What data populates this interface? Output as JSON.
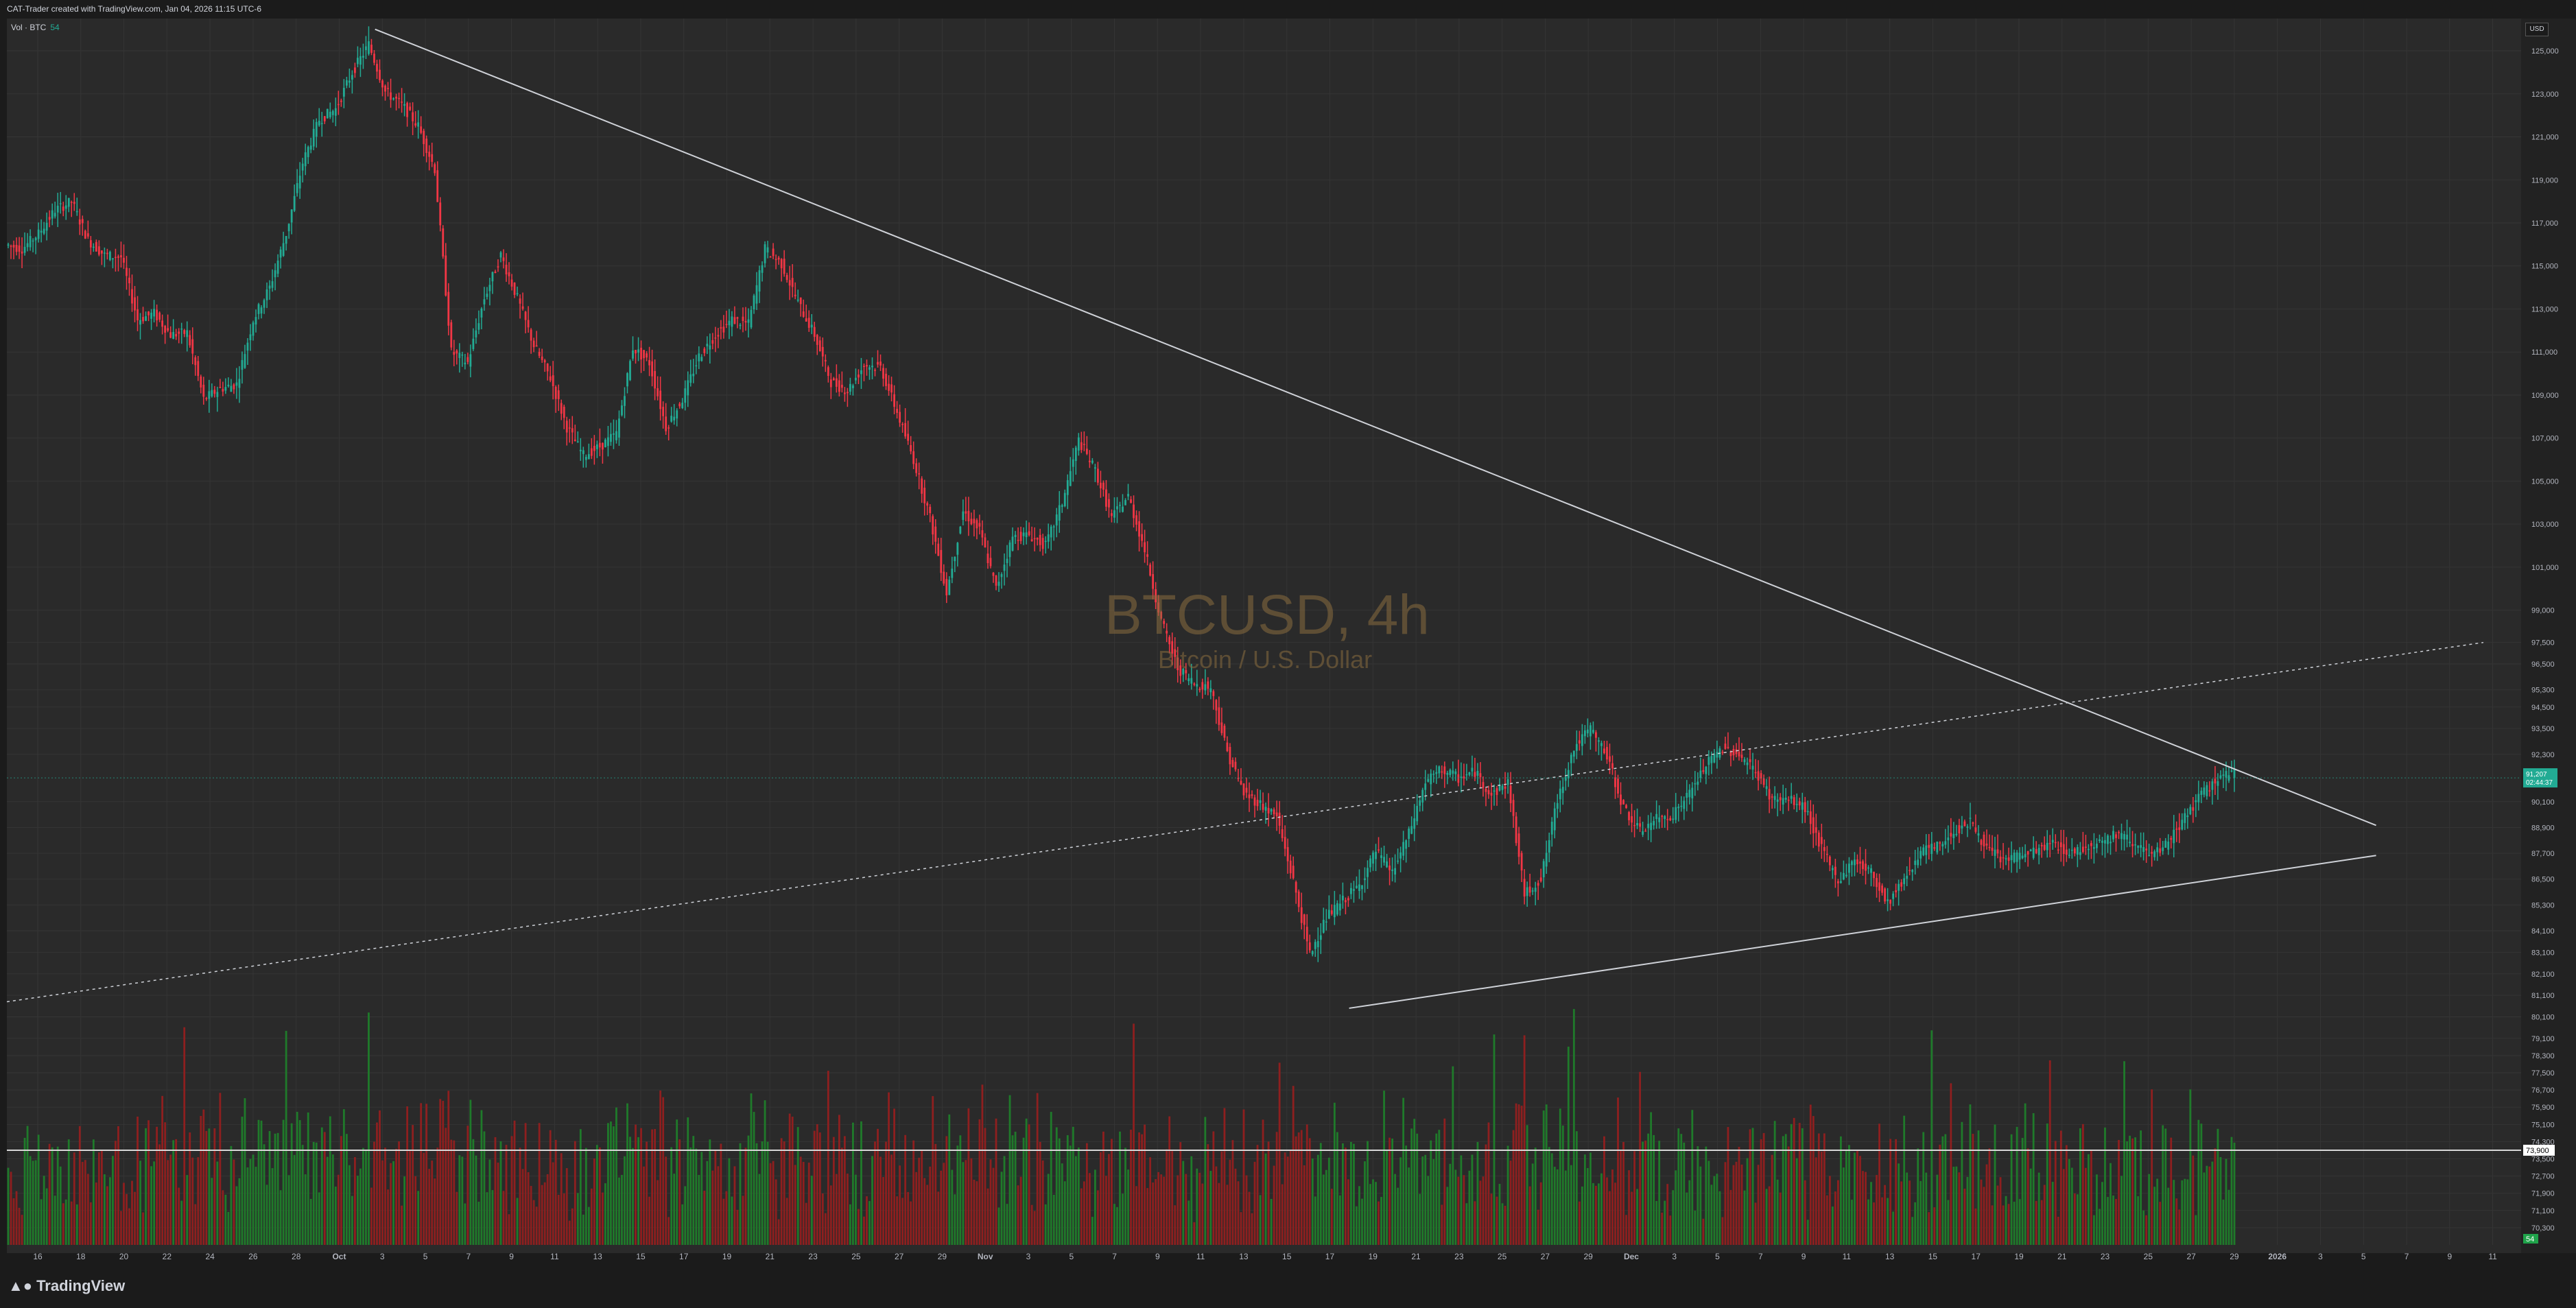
{
  "caption": "CAT-Trader created with TradingView.com, Jan 04, 2026 11:15 UTC-6",
  "indicator_legend": {
    "label": "Vol · BTC",
    "value": "54"
  },
  "watermark": {
    "symbol": "BTCUSD, 4h",
    "description": "Bitcoin / U.S. Dollar"
  },
  "brand": {
    "name": "TradingView",
    "logo": "tradingview-logo-icon"
  },
  "currency": "USD",
  "colors": {
    "up": "#22ab94",
    "down": "#f23645",
    "vol_up": "#1f7a2a",
    "vol_down": "#8e1f1f",
    "line": "#cfd2d8",
    "grid": "#353535"
  },
  "chart_data": {
    "type": "candlestick",
    "symbol": "BTCUSD",
    "interval": "4h",
    "ylim": [
      69500,
      126500
    ],
    "price_ticks": [
      125000,
      123000,
      121000,
      119000,
      117000,
      115000,
      113000,
      111000,
      109000,
      107000,
      105000,
      103000,
      101000,
      99000,
      97500,
      96500,
      95300,
      94500,
      93500,
      92300,
      90100,
      88900,
      87700,
      86500,
      85300,
      84100,
      83100,
      82100,
      81100,
      80100,
      79100,
      78300,
      77500,
      76700,
      75900,
      75100,
      74300,
      73500,
      72700,
      71900,
      71100,
      70300
    ],
    "price_tick_labels": [
      "125,000",
      "123,000",
      "121,000",
      "119,000",
      "117,000",
      "115,000",
      "113,000",
      "111,000",
      "109,000",
      "107,000",
      "105,000",
      "103,000",
      "101,000",
      "99,000",
      "97,500",
      "96,500",
      "95,300",
      "94,500",
      "93,500",
      "92,300",
      "90,100",
      "88,900",
      "87,700",
      "86,500",
      "85,300",
      "84,100",
      "83,100",
      "82,100",
      "81,100",
      "80,100",
      "79,100",
      "78,300",
      "77,500",
      "76,700",
      "75,900",
      "75,100",
      "74,300",
      "73,500",
      "72,700",
      "71,900",
      "71,100",
      "70,300"
    ],
    "current_price": {
      "value": 91207,
      "label": "91,207",
      "countdown": "02:44:37"
    },
    "horizontal_line": {
      "value": 73900,
      "label": "73,900"
    },
    "x_ticks": [
      "16",
      "18",
      "20",
      "22",
      "24",
      "26",
      "28",
      "Oct",
      "3",
      "5",
      "7",
      "9",
      "11",
      "13",
      "15",
      "17",
      "19",
      "21",
      "23",
      "25",
      "27",
      "29",
      "Nov",
      "3",
      "5",
      "7",
      "9",
      "11",
      "13",
      "15",
      "17",
      "19",
      "21",
      "23",
      "25",
      "27",
      "29",
      "Dec",
      "3",
      "5",
      "7",
      "9",
      "11",
      "13",
      "15",
      "17",
      "19",
      "21",
      "23",
      "25",
      "27",
      "29",
      "2026",
      "3",
      "5",
      "7",
      "9",
      "11"
    ],
    "price_path": [
      [
        0,
        116000
      ],
      [
        1,
        115800
      ],
      [
        2,
        116500
      ],
      [
        3,
        117600
      ],
      [
        4,
        118000
      ],
      [
        5,
        116200
      ],
      [
        6,
        115500
      ],
      [
        7,
        115400
      ],
      [
        8,
        112500
      ],
      [
        9,
        112800
      ],
      [
        10,
        111800
      ],
      [
        11,
        111900
      ],
      [
        12,
        108800
      ],
      [
        13,
        109300
      ],
      [
        14,
        109500
      ],
      [
        15,
        112500
      ],
      [
        16,
        114000
      ],
      [
        17,
        116500
      ],
      [
        18,
        119800
      ],
      [
        19,
        121800
      ],
      [
        20,
        122300
      ],
      [
        21,
        124000
      ],
      [
        22,
        125300
      ],
      [
        23,
        123100
      ],
      [
        24,
        122500
      ],
      [
        25,
        121500
      ],
      [
        26,
        119500
      ],
      [
        27,
        111000
      ],
      [
        28,
        110500
      ],
      [
        29,
        113500
      ],
      [
        30,
        115500
      ],
      [
        31,
        113500
      ],
      [
        32,
        111300
      ],
      [
        33,
        109800
      ],
      [
        34,
        107500
      ],
      [
        35,
        106200
      ],
      [
        36,
        106600
      ],
      [
        37,
        107200
      ],
      [
        38,
        111200
      ],
      [
        39,
        110500
      ],
      [
        40,
        107500
      ],
      [
        41,
        108800
      ],
      [
        42,
        110800
      ],
      [
        43,
        111800
      ],
      [
        44,
        112500
      ],
      [
        45,
        112300
      ],
      [
        46,
        115800
      ],
      [
        47,
        115100
      ],
      [
        48,
        113300
      ],
      [
        49,
        111800
      ],
      [
        50,
        109600
      ],
      [
        51,
        109200
      ],
      [
        52,
        110400
      ],
      [
        53,
        110300
      ],
      [
        54,
        108200
      ],
      [
        55,
        106000
      ],
      [
        56,
        103300
      ],
      [
        57,
        99800
      ],
      [
        58,
        103600
      ],
      [
        59,
        102700
      ],
      [
        60,
        100000
      ],
      [
        61,
        102400
      ],
      [
        62,
        102500
      ],
      [
        63,
        102000
      ],
      [
        64,
        104000
      ],
      [
        65,
        106900
      ],
      [
        66,
        105500
      ],
      [
        67,
        103300
      ],
      [
        68,
        104300
      ],
      [
        69,
        101800
      ],
      [
        70,
        98500
      ],
      [
        71,
        96300
      ],
      [
        72,
        95600
      ],
      [
        73,
        95400
      ],
      [
        74,
        92400
      ],
      [
        75,
        90500
      ],
      [
        76,
        90000
      ],
      [
        77,
        89400
      ],
      [
        78,
        86400
      ],
      [
        79,
        83000
      ],
      [
        80,
        84700
      ],
      [
        81,
        85500
      ],
      [
        82,
        86200
      ],
      [
        83,
        87800
      ],
      [
        84,
        86800
      ],
      [
        85,
        88600
      ],
      [
        86,
        91000
      ],
      [
        87,
        91600
      ],
      [
        88,
        91200
      ],
      [
        89,
        91500
      ],
      [
        90,
        90400
      ],
      [
        91,
        91000
      ],
      [
        92,
        85800
      ],
      [
        93,
        86500
      ],
      [
        94,
        90200
      ],
      [
        95,
        92600
      ],
      [
        96,
        93500
      ],
      [
        97,
        92200
      ],
      [
        98,
        89800
      ],
      [
        99,
        88700
      ],
      [
        100,
        89300
      ],
      [
        101,
        89500
      ],
      [
        102,
        90500
      ],
      [
        103,
        91800
      ],
      [
        104,
        92600
      ],
      [
        105,
        92300
      ],
      [
        106,
        91500
      ],
      [
        107,
        90200
      ],
      [
        108,
        90200
      ],
      [
        109,
        89800
      ],
      [
        110,
        87900
      ],
      [
        111,
        86400
      ],
      [
        112,
        87400
      ],
      [
        113,
        86800
      ],
      [
        114,
        85400
      ],
      [
        115,
        86500
      ],
      [
        116,
        87800
      ],
      [
        117,
        88000
      ],
      [
        118,
        88700
      ],
      [
        119,
        89200
      ],
      [
        120,
        87900
      ],
      [
        121,
        87400
      ],
      [
        122,
        87600
      ],
      [
        123,
        87800
      ],
      [
        124,
        88200
      ],
      [
        125,
        87700
      ],
      [
        126,
        88000
      ],
      [
        127,
        88300
      ],
      [
        128,
        88600
      ],
      [
        129,
        88200
      ],
      [
        130,
        87500
      ],
      [
        131,
        88200
      ],
      [
        132,
        89400
      ],
      [
        133,
        90400
      ],
      [
        134,
        91200
      ],
      [
        135,
        91400
      ]
    ],
    "trendlines": [
      {
        "name": "descending-resistance",
        "style": "solid",
        "from": [
          22.3,
          126000
        ],
        "to": [
          143.5,
          89000
        ]
      },
      {
        "name": "ascending-support",
        "style": "solid",
        "from": [
          81.3,
          80500
        ],
        "to": [
          143.5,
          87600
        ]
      },
      {
        "name": "dotted-rising-line",
        "style": "dotted",
        "from": [
          0,
          80800
        ],
        "to": [
          150,
          97500
        ]
      }
    ]
  }
}
